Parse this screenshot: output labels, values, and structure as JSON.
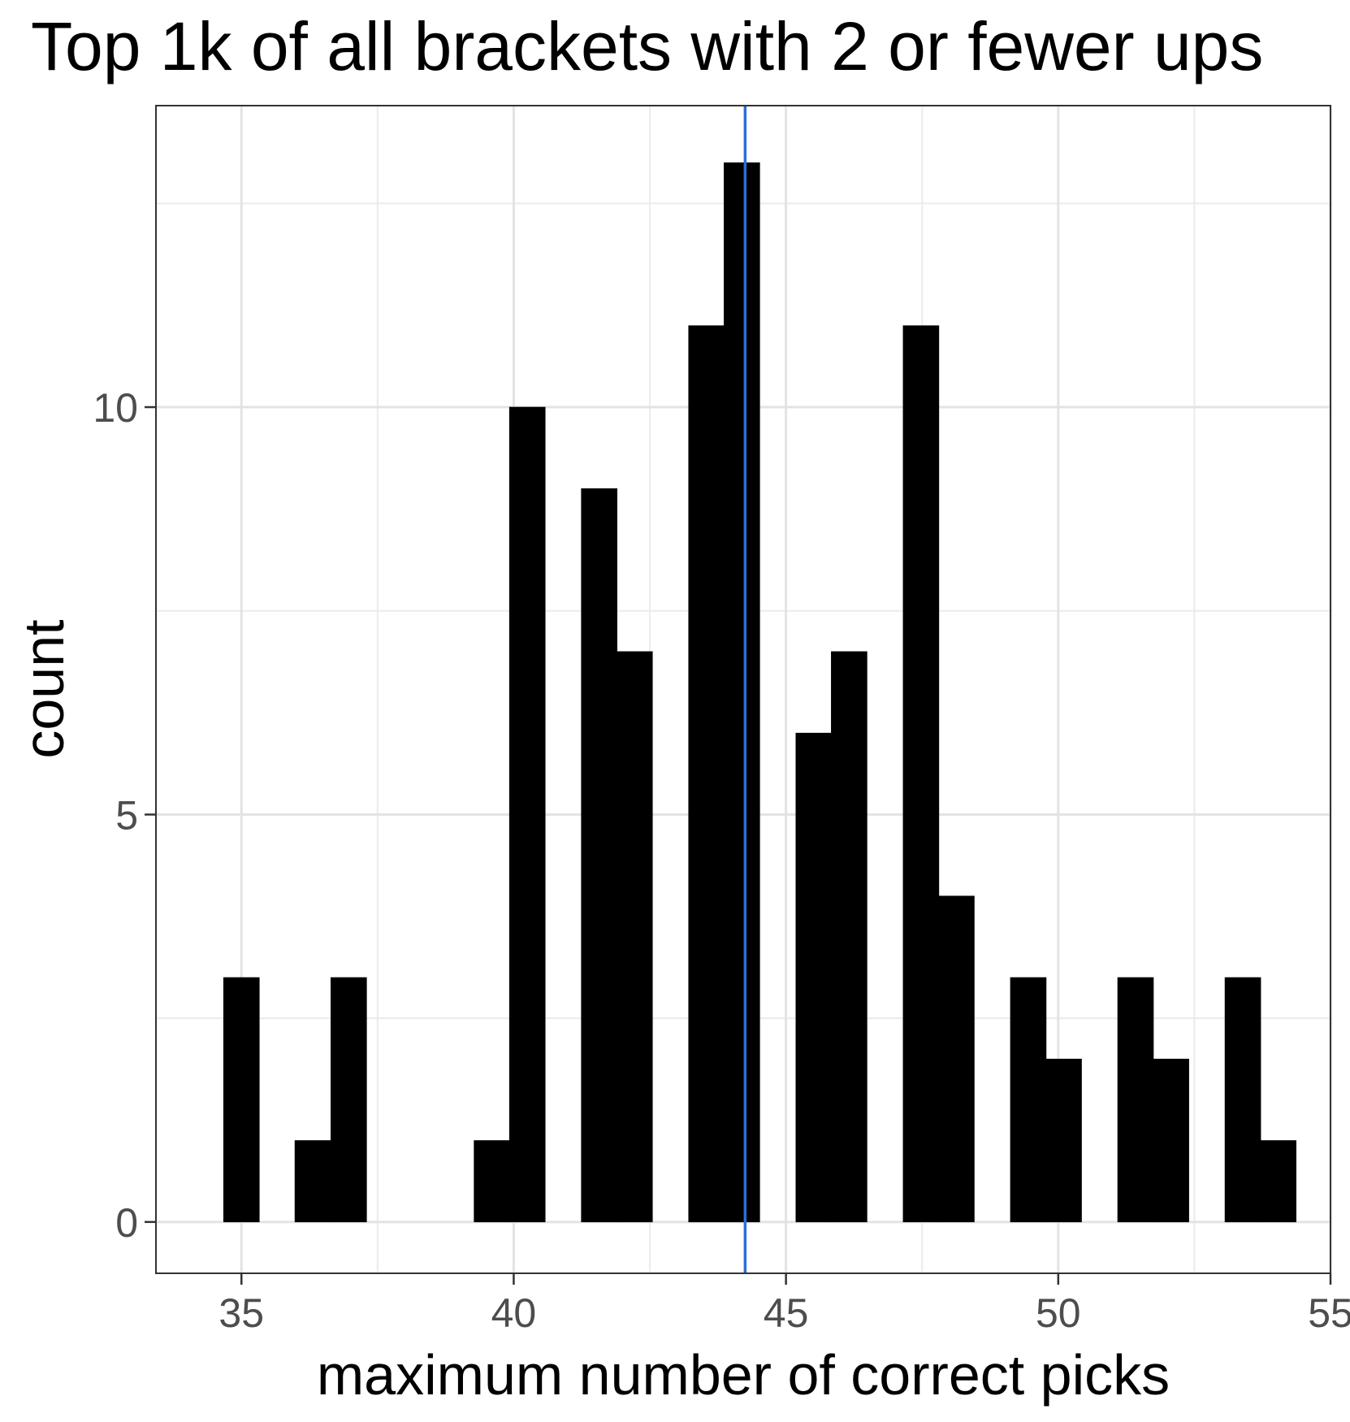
{
  "chart_data": {
    "type": "bar",
    "title": "Top 1k of all brackets with 2 or fewer ups",
    "xlabel": "maximum number of correct picks",
    "ylabel": "count",
    "xlim": [
      33.43,
      55.0
    ],
    "ylim": [
      -0.63,
      13.7
    ],
    "x_ticks": [
      "35",
      "40",
      "45",
      "50",
      "55"
    ],
    "y_ticks": [
      "0",
      "5",
      "10"
    ],
    "bin_width": 0.6567,
    "bins": [
      {
        "x": 35.0,
        "count": 3
      },
      {
        "x": 35.66,
        "count": 0
      },
      {
        "x": 36.31,
        "count": 1
      },
      {
        "x": 36.97,
        "count": 3
      },
      {
        "x": 37.63,
        "count": 0
      },
      {
        "x": 38.28,
        "count": 0
      },
      {
        "x": 38.94,
        "count": 0
      },
      {
        "x": 39.6,
        "count": 1
      },
      {
        "x": 40.25,
        "count": 10
      },
      {
        "x": 40.91,
        "count": 0
      },
      {
        "x": 41.57,
        "count": 9
      },
      {
        "x": 42.22,
        "count": 7
      },
      {
        "x": 42.88,
        "count": 0
      },
      {
        "x": 43.54,
        "count": 11
      },
      {
        "x": 44.19,
        "count": 13
      },
      {
        "x": 44.85,
        "count": 0
      },
      {
        "x": 45.51,
        "count": 6
      },
      {
        "x": 46.16,
        "count": 7
      },
      {
        "x": 46.82,
        "count": 0
      },
      {
        "x": 47.48,
        "count": 11
      },
      {
        "x": 48.13,
        "count": 4
      },
      {
        "x": 48.79,
        "count": 0
      },
      {
        "x": 49.45,
        "count": 3
      },
      {
        "x": 50.1,
        "count": 2
      },
      {
        "x": 50.76,
        "count": 0
      },
      {
        "x": 51.42,
        "count": 3
      },
      {
        "x": 52.07,
        "count": 2
      },
      {
        "x": 52.73,
        "count": 0
      },
      {
        "x": 53.39,
        "count": 3
      },
      {
        "x": 54.04,
        "count": 1
      }
    ],
    "vline": {
      "x": 44.25,
      "color": "#2b6fd9"
    },
    "bar_color": "#000000",
    "grid": true,
    "legend": "none"
  }
}
